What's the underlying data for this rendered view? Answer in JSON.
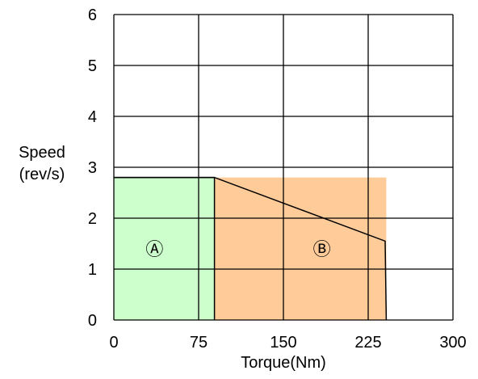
{
  "chart_data": {
    "type": "area",
    "xlabel": "Torque(Nm)",
    "ylabel_lines": [
      "Speed",
      "(rev/s)"
    ],
    "xlim": [
      0,
      300
    ],
    "ylim": [
      0,
      6
    ],
    "x_ticks": [
      0,
      75,
      150,
      225,
      300
    ],
    "y_ticks": [
      0,
      1,
      2,
      3,
      4,
      5,
      6
    ],
    "grid": true,
    "regions": [
      {
        "label": "Ⓐ",
        "color": "#ccffcc",
        "polygon": [
          [
            0,
            0
          ],
          [
            0,
            2.8
          ],
          [
            89,
            2.8
          ],
          [
            89,
            0
          ]
        ],
        "label_pos": [
          36,
          1.4
        ]
      },
      {
        "label": "Ⓑ",
        "color": "#ffcc99",
        "polygon": [
          [
            89,
            0
          ],
          [
            89,
            2.8
          ],
          [
            241,
            2.8
          ],
          [
            241,
            0
          ]
        ],
        "label_pos": [
          184,
          1.4
        ]
      }
    ],
    "outline": [
      [
        0,
        2.8
      ],
      [
        89,
        2.8
      ],
      [
        240,
        1.55
      ],
      [
        241,
        0
      ]
    ],
    "region_a_top": [
      [
        0,
        2.8
      ],
      [
        89,
        2.8
      ]
    ],
    "divider": [
      [
        89,
        0
      ],
      [
        89,
        2.8
      ]
    ]
  }
}
